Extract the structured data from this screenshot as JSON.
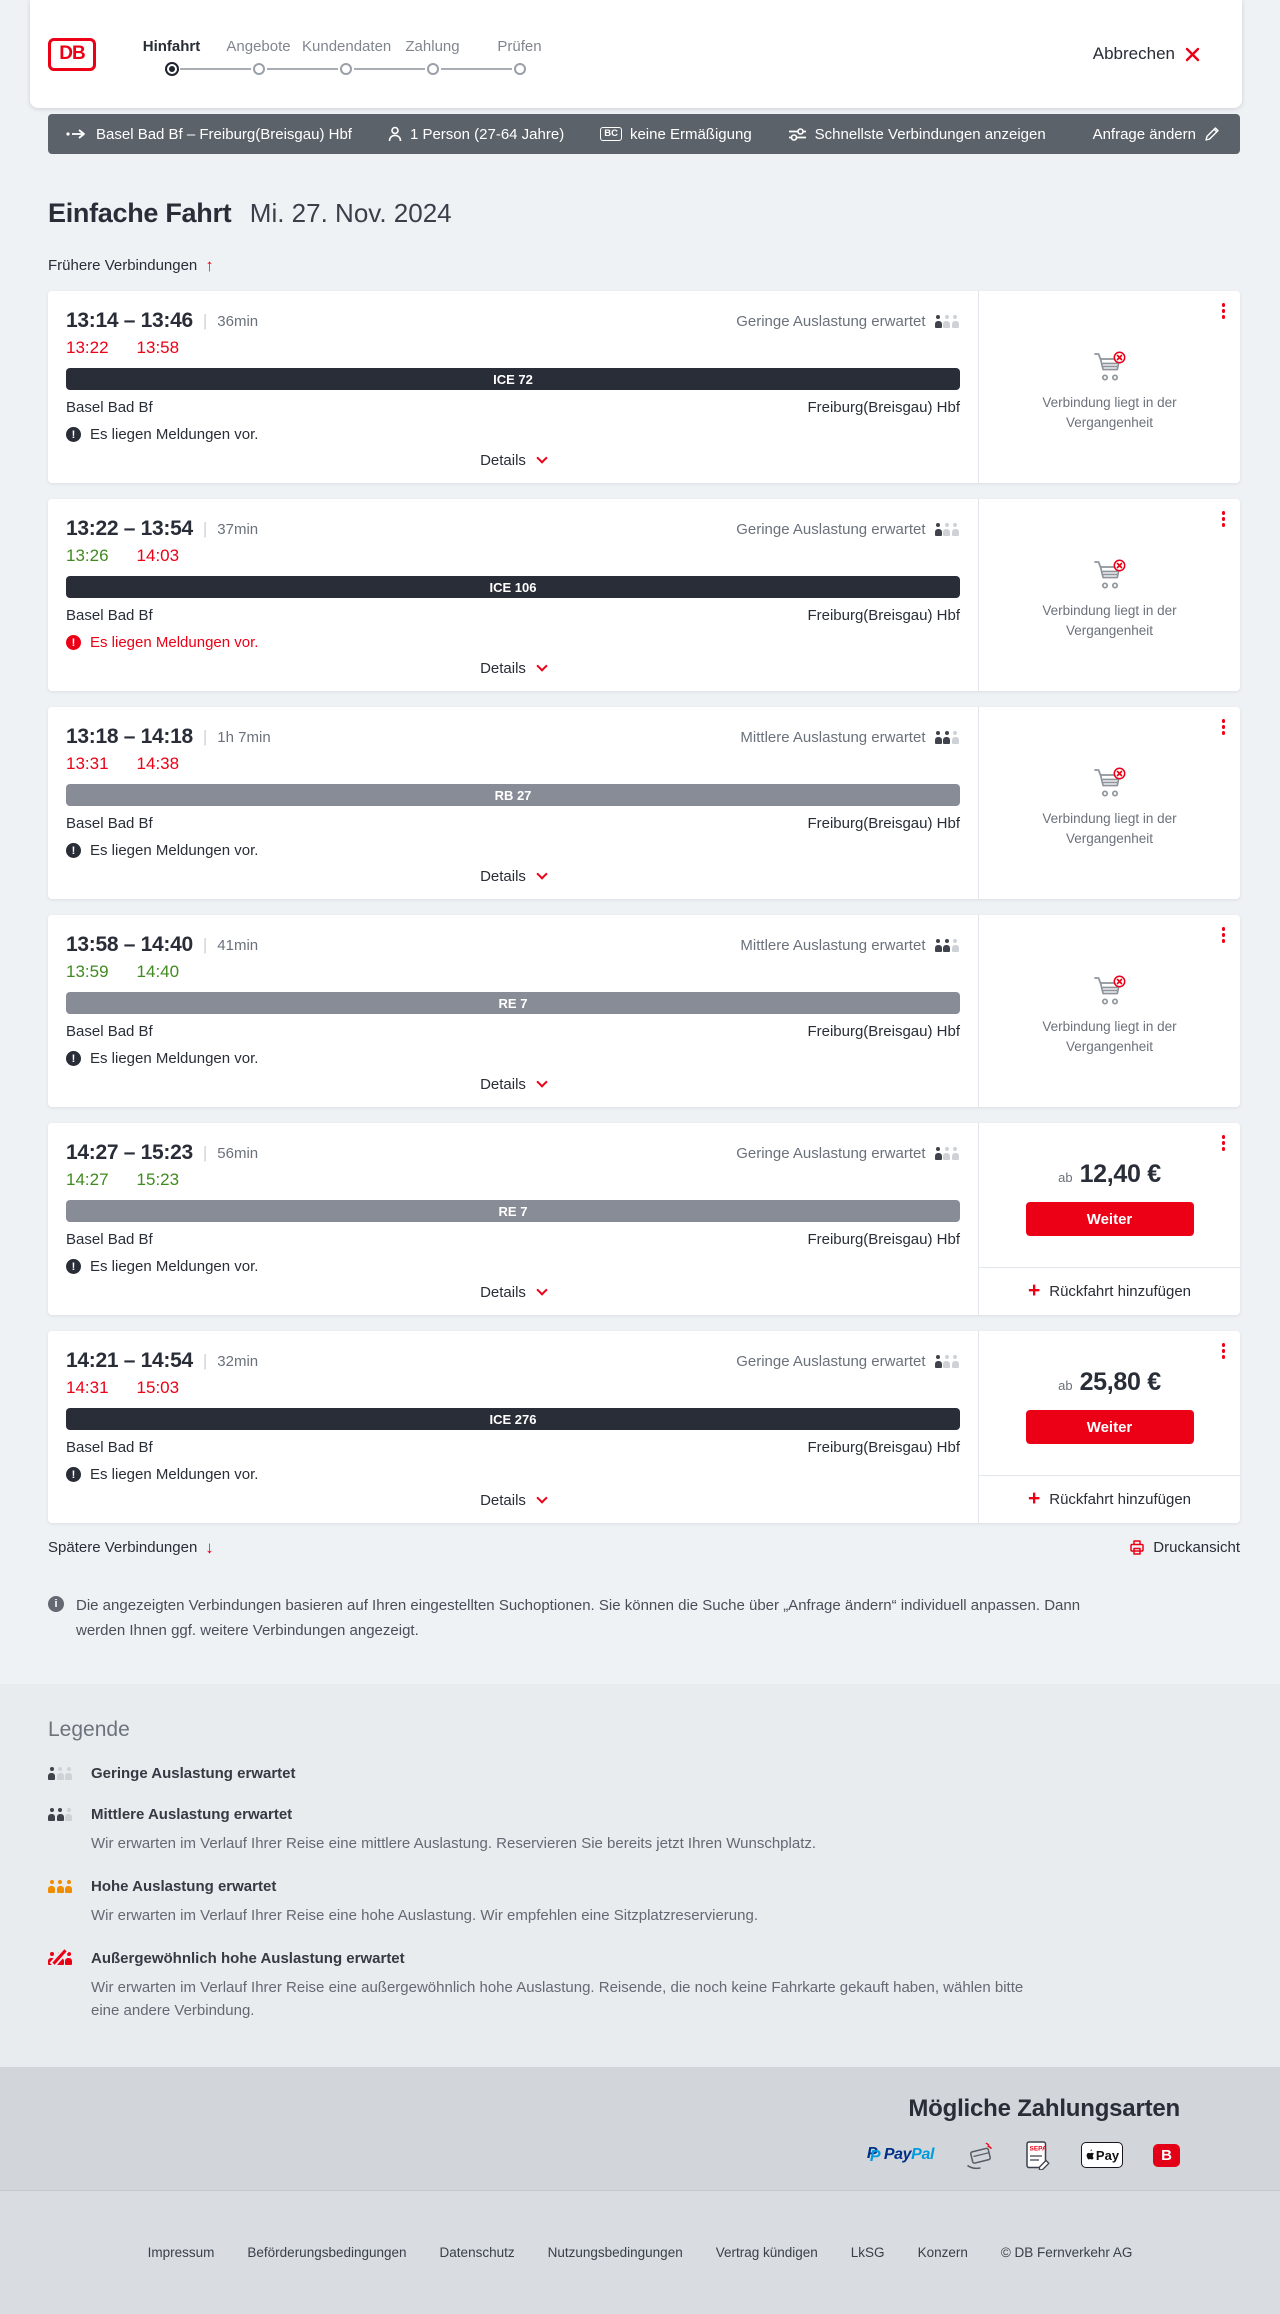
{
  "header": {
    "logo_text": "DB",
    "steps": [
      {
        "label": "Hinfahrt",
        "active": true
      },
      {
        "label": "Angebote",
        "active": false
      },
      {
        "label": "Kundendaten",
        "active": false
      },
      {
        "label": "Zahlung",
        "active": false
      },
      {
        "label": "Prüfen",
        "active": false
      }
    ],
    "cancel_label": "Abbrechen"
  },
  "search_summary": {
    "route": "Basel Bad Bf – Freiburg(Breisgau) Hbf",
    "passengers": "1 Person (27-64 Jahre)",
    "discount_badge": "BC",
    "discount": "keine Ermäßigung",
    "fastest": "Schnellste Verbindungen anzeigen",
    "change_request": "Anfrage ändern"
  },
  "page": {
    "title": "Einfache Fahrt",
    "date": "Mi. 27. Nov. 2024",
    "earlier": "Frühere Verbindungen",
    "later": "Spätere Verbindungen",
    "print": "Druckansicht",
    "info_note": "Die angezeigten Verbindungen basieren auf Ihren eingestellten Suchoptionen. Sie können die Suche über „Anfrage ändern“ individuell anpassen. Dann werden Ihnen ggf. weitere Verbindungen angezeigt."
  },
  "labels": {
    "details": "Details",
    "message": "Es liegen Meldungen vor.",
    "past": "Verbindung liegt in der Vergangenheit",
    "from_price": "ab",
    "continue": "Weiter",
    "add_return": "Rückfahrt hinzufügen"
  },
  "connections": [
    {
      "times": "13:14 – 13:46",
      "duration": "36min",
      "dep_actual": "13:22",
      "dep_state": "delayed",
      "arr_actual": "13:58",
      "arr_state": "delayed",
      "train": "ICE 72",
      "train_style": "dark",
      "from": "Basel Bad Bf",
      "to": "Freiburg(Breisgau) Hbf",
      "occupancy": "Geringe Auslastung erwartet",
      "occupancy_level": "low",
      "message_alert": false,
      "status": "past"
    },
    {
      "times": "13:22 – 13:54",
      "duration": "37min",
      "dep_actual": "13:26",
      "dep_state": "ontime",
      "arr_actual": "14:03",
      "arr_state": "delayed",
      "train": "ICE 106",
      "train_style": "dark",
      "from": "Basel Bad Bf",
      "to": "Freiburg(Breisgau) Hbf",
      "occupancy": "Geringe Auslastung erwartet",
      "occupancy_level": "low",
      "message_alert": true,
      "status": "past"
    },
    {
      "times": "13:18 – 14:18",
      "duration": "1h 7min",
      "dep_actual": "13:31",
      "dep_state": "delayed",
      "arr_actual": "14:38",
      "arr_state": "delayed",
      "train": "RB 27",
      "train_style": "gray",
      "from": "Basel Bad Bf",
      "to": "Freiburg(Breisgau) Hbf",
      "occupancy": "Mittlere Auslastung erwartet",
      "occupancy_level": "mid",
      "message_alert": false,
      "status": "past"
    },
    {
      "times": "13:58 – 14:40",
      "duration": "41min",
      "dep_actual": "13:59",
      "dep_state": "ontime",
      "arr_actual": "14:40",
      "arr_state": "ontime",
      "train": "RE 7",
      "train_style": "gray",
      "from": "Basel Bad Bf",
      "to": "Freiburg(Breisgau) Hbf",
      "occupancy": "Mittlere Auslastung erwartet",
      "occupancy_level": "mid",
      "message_alert": false,
      "status": "past"
    },
    {
      "times": "14:27 – 15:23",
      "duration": "56min",
      "dep_actual": "14:27",
      "dep_state": "ontime",
      "arr_actual": "15:23",
      "arr_state": "ontime",
      "train": "RE 7",
      "train_style": "gray",
      "from": "Basel Bad Bf",
      "to": "Freiburg(Breisgau) Hbf",
      "occupancy": "Geringe Auslastung erwartet",
      "occupancy_level": "low",
      "message_alert": false,
      "status": "bookable",
      "price": "12,40 €"
    },
    {
      "times": "14:21 – 14:54",
      "duration": "32min",
      "dep_actual": "14:31",
      "dep_state": "delayed",
      "arr_actual": "15:03",
      "arr_state": "delayed",
      "train": "ICE 276",
      "train_style": "dark",
      "from": "Basel Bad Bf",
      "to": "Freiburg(Breisgau) Hbf",
      "occupancy": "Geringe Auslastung erwartet",
      "occupancy_level": "low",
      "message_alert": false,
      "status": "bookable",
      "price": "25,80 €"
    }
  ],
  "legend": {
    "title": "Legende",
    "items": [
      {
        "label": "Geringe Auslastung erwartet",
        "level": "low",
        "description": ""
      },
      {
        "label": "Mittlere Auslastung erwartet",
        "level": "mid",
        "description": "Wir erwarten im Verlauf Ihrer Reise eine mittlere Auslastung. Reservieren Sie bereits jetzt Ihren Wunschplatz."
      },
      {
        "label": "Hohe Auslastung erwartet",
        "level": "high",
        "description": "Wir erwarten im Verlauf Ihrer Reise eine hohe Auslastung. Wir empfehlen eine Sitzplatzreservierung."
      },
      {
        "label": "Außergewöhnlich hohe Auslastung erwartet",
        "level": "extreme",
        "description": "Wir erwarten im Verlauf Ihrer Reise eine außergewöhnlich hohe Auslastung. Reisende, die noch keine Fahrkarte gekauft haben, wählen bitte eine andere Verbindung."
      }
    ]
  },
  "payment": {
    "title": "Mögliche Zahlungsarten",
    "paypal_word1": "Pay",
    "paypal_word2": "Pal",
    "sepa_label": "SEPA",
    "applepay_label": "Pay",
    "bahnbonus_label": "B"
  },
  "footer": {
    "links": [
      "Impressum",
      "Beförderungsbedingungen",
      "Datenschutz",
      "Nutzungsbedingungen",
      "Vertrag kündigen",
      "LkSG",
      "Konzern"
    ],
    "copyright": "© DB Fernverkehr AG"
  },
  "colors": {
    "brand_red": "#ec0016",
    "dark": "#282d37",
    "green": "#408a1f",
    "summary_bar": "#5c6269"
  }
}
